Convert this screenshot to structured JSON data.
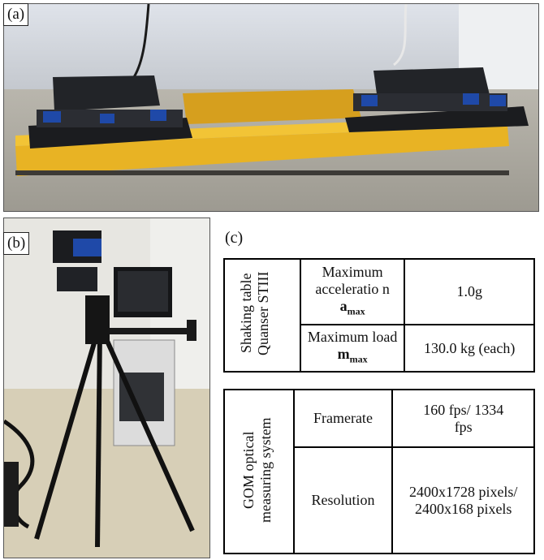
{
  "panels": {
    "a": "(a)",
    "b": "(b)",
    "c": "(c)"
  },
  "shaking_table": {
    "system": "Shaking table Quanser STIII",
    "rows": [
      {
        "param_text": "Maximum acceleratio n",
        "param_symbol": "a",
        "param_sub": "max",
        "value": "1.0g"
      },
      {
        "param_text": "Maximum load",
        "param_symbol": "m",
        "param_sub": "max",
        "value": "130.0 kg (each)"
      }
    ]
  },
  "gom_system": {
    "system": "GOM optical measuring system",
    "rows": [
      {
        "param": "Framerate",
        "value": "160 fps/ 1334 fps"
      },
      {
        "param": "Resolution",
        "value": "2400x1728 pixels/ 2400x168 pixels"
      }
    ]
  }
}
